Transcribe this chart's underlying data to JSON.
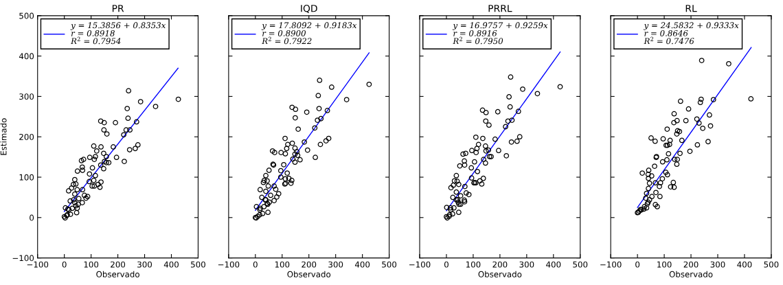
{
  "chart_data": [
    {
      "type": "scatter",
      "title": "PR",
      "xlabel": "Observado",
      "ylabel": "Estimado",
      "xlim": [
        -100,
        500
      ],
      "ylim": [
        -100,
        500
      ],
      "xticks": [
        -100,
        0,
        100,
        200,
        300,
        400,
        500
      ],
      "yticks": [
        -100,
        0,
        100,
        200,
        300,
        400,
        500
      ],
      "grid": false,
      "legend": "top left",
      "series": [
        {
          "color": "#000000",
          "marker": "circle",
          "x": [
            426,
            240,
            285,
            341,
            235,
            238,
            270,
            231,
            245,
            222,
            275,
            265,
            244,
            224,
            183,
            195,
            191,
            136,
            149,
            148,
            159,
            110,
            137,
            121,
            116,
            112,
            95,
            105,
            147,
            157,
            150,
            157,
            166,
            147,
            136,
            64,
            72,
            67,
            68,
            49,
            94,
            116,
            110,
            93,
            137,
            126,
            133,
            104,
            112,
            39,
            43,
            34,
            48,
            16,
            27,
            68,
            75,
            87,
            81,
            54,
            67,
            39,
            22,
            39,
            43,
            30,
            46,
            23,
            11,
            4,
            17,
            0,
            3,
            9,
            13,
            35,
            52,
            48
          ],
          "values": [
            293,
            314,
            287,
            275,
            270,
            246,
            237,
            217,
            217,
            205,
            180,
            171,
            168,
            139,
            175,
            149,
            235,
            239,
            235,
            217,
            207,
            177,
            175,
            165,
            151,
            144,
            149,
            123,
            159,
            151,
            139,
            136,
            136,
            121,
            130,
            141,
            144,
            125,
            117,
            115,
            108,
            104,
            92,
            89,
            88,
            82,
            75,
            78,
            78,
            94,
            83,
            82,
            69,
            66,
            73,
            69,
            55,
            52,
            48,
            47,
            37,
            58,
            41,
            37,
            29,
            23,
            12,
            8,
            7,
            24,
            19,
            2,
            -1,
            5,
            21,
            44,
            33,
            23
          ]
        },
        {
          "type": "line",
          "name": "y = 15.3856 + 0.8353x\nr = 0.8918\nR$^{2}$ = 0.7954",
          "color": "#0000ff",
          "line_style": "solid",
          "marker": "none",
          "x": [
            0,
            425
          ],
          "values": [
            15,
            370
          ]
        }
      ]
    },
    {
      "type": "scatter",
      "title": "IQD",
      "xlabel": "Observado",
      "xlim": [
        -100,
        500
      ],
      "ylim": [
        -100,
        500
      ],
      "xticks": [
        -100,
        0,
        100,
        200,
        300,
        400,
        500
      ],
      "yticks": [
        -100,
        0,
        100,
        200,
        300,
        400,
        500
      ],
      "tick_labels": "x",
      "grid": false,
      "legend": "top left",
      "series": [
        {
          "color": "#000000",
          "marker": "circle",
          "x": [
            425,
            240,
            285,
            341,
            235,
            238,
            269,
            232,
            245,
            222,
            274,
            264,
            243,
            224,
            183,
            195,
            192,
            137,
            150,
            149,
            160,
            111,
            138,
            121,
            117,
            112,
            96,
            106,
            148,
            155,
            148,
            158,
            167,
            148,
            140,
            64,
            72,
            66,
            68,
            51,
            95,
            119,
            112,
            95,
            136,
            125,
            133,
            110,
            113,
            39,
            44,
            33,
            48,
            18,
            30,
            70,
            76,
            87,
            80,
            57,
            70,
            39,
            24,
            39,
            44,
            32,
            47,
            27,
            16,
            4,
            18,
            0,
            3,
            9,
            17,
            37,
            52,
            46
          ],
          "values": [
            330,
            340,
            323,
            292,
            302,
            270,
            265,
            241,
            245,
            222,
            196,
            190,
            181,
            149,
            187,
            167,
            261,
            273,
            268,
            247,
            219,
            196,
            184,
            181,
            171,
            158,
            161,
            131,
            172,
            163,
            157,
            154,
            143,
            137,
            145,
            165,
            161,
            132,
            130,
            117,
            116,
            110,
            96,
            100,
            92,
            97,
            85,
            83,
            85,
            104,
            91,
            92,
            78,
            69,
            87,
            78,
            70,
            59,
            51,
            55,
            42,
            65,
            50,
            44,
            35,
            27,
            13,
            10,
            7,
            27,
            23,
            0,
            -1,
            3,
            19,
            44,
            38,
            33
          ]
        },
        {
          "type": "line",
          "name": "y = 17.8092 + 0.9183x\nr = 0.8900\nR$^{2}$ = 0.7922",
          "color": "#0000ff",
          "line_style": "solid",
          "marker": "none",
          "x": [
            0,
            425
          ],
          "values": [
            18,
            408
          ]
        }
      ]
    },
    {
      "type": "scatter",
      "title": "PRRL",
      "xlabel": "Observado",
      "xlim": [
        -100,
        500
      ],
      "ylim": [
        -100,
        500
      ],
      "xticks": [
        -100,
        0,
        100,
        200,
        300,
        400,
        500
      ],
      "yticks": [
        -100,
        0,
        100,
        200,
        300,
        400,
        500
      ],
      "tick_labels": "x",
      "grid": false,
      "legend": "top left",
      "series": [
        {
          "color": "#000000",
          "marker": "circle",
          "x": [
            425,
            240,
            285,
            340,
            234,
            238,
            269,
            230,
            245,
            221,
            274,
            264,
            243,
            224,
            182,
            195,
            192,
            135,
            148,
            147,
            159,
            110,
            136,
            120,
            114,
            111,
            95,
            105,
            146,
            157,
            148,
            161,
            167,
            146,
            139,
            62,
            72,
            67,
            68,
            50,
            93,
            116,
            105,
            94,
            138,
            125,
            132,
            110,
            103,
            37,
            40,
            30,
            46,
            17,
            26,
            69,
            74,
            84,
            67,
            53,
            68,
            37,
            24,
            42,
            47,
            28,
            46,
            23,
            12,
            1,
            15,
            0,
            3,
            10,
            16,
            37,
            53,
            44
          ],
          "values": [
            324,
            348,
            318,
            307,
            299,
            274,
            263,
            239,
            241,
            225,
            200,
            189,
            187,
            153,
            194,
            166,
            262,
            266,
            260,
            239,
            229,
            199,
            196,
            181,
            171,
            161,
            166,
            138,
            177,
            167,
            165,
            151,
            151,
            135,
            144,
            157,
            159,
            140,
            130,
            128,
            123,
            114,
            86,
            98,
            97,
            91,
            83,
            86,
            86,
            104,
            90,
            91,
            82,
            74,
            80,
            77,
            61,
            57,
            43,
            54,
            39,
            63,
            50,
            44,
            33,
            24,
            13,
            9,
            7,
            25,
            24,
            2,
            -1,
            3,
            19,
            44,
            33,
            38
          ]
        },
        {
          "type": "line",
          "name": "y = 16.9757 + 0.9259x\nr = 0.8916\nR$^{2}$ = 0.7950",
          "color": "#0000ff",
          "line_style": "solid",
          "marker": "none",
          "x": [
            0,
            425
          ],
          "values": [
            17,
            410
          ]
        }
      ]
    },
    {
      "type": "scatter",
      "title": "RL",
      "xlabel": "Observado",
      "xlim": [
        -100,
        500
      ],
      "ylim": [
        -100,
        500
      ],
      "xticks": [
        -100,
        0,
        100,
        200,
        300,
        400,
        500
      ],
      "yticks": [
        -100,
        0,
        100,
        200,
        300,
        400,
        500
      ],
      "tick_labels": "x",
      "grid": false,
      "legend": "top left",
      "series": [
        {
          "color": "#000000",
          "marker": "circle",
          "x": [
            424,
            240,
            341,
            284,
            238,
            235,
            269,
            230,
            244,
            222,
            273,
            264,
            224,
            196,
            181,
            191,
            161,
            137,
            148,
            136,
            150,
            157,
            147,
            111,
            122,
            166,
            96,
            107,
            112,
            120,
            66,
            51,
            71,
            70,
            116,
            110,
            94,
            139,
            149,
            147,
            159,
            64,
            106,
            112,
            93,
            134,
            124,
            137,
            86,
            82,
            18,
            42,
            40,
            41,
            53,
            45,
            67,
            41,
            34,
            69,
            84,
            67,
            74,
            54,
            31,
            45,
            37,
            26,
            15,
            7,
            3,
            0,
            11,
            24,
            40,
            34
          ],
          "values": [
            294,
            389,
            381,
            292,
            293,
            285,
            254,
            234,
            221,
            244,
            227,
            188,
            180,
            164,
            240,
            269,
            288,
            257,
            240,
            235,
            215,
            213,
            207,
            219,
            191,
            191,
            195,
            179,
            179,
            181,
            189,
            197,
            151,
            149,
            158,
            143,
            138,
            144,
            144,
            132,
            159,
            127,
            112,
            106,
            96,
            87,
            76,
            75,
            86,
            77,
            110,
            117,
            107,
            97,
            103,
            85,
            86,
            72,
            60,
            62,
            52,
            32,
            27,
            52,
            48,
            44,
            34,
            27,
            19,
            16,
            13,
            12,
            20,
            21,
            38,
            24
          ]
        },
        {
          "type": "line",
          "name": "y = 24.5832 + 0.9333x\nr = 0.8646\nR$^{2}$ = 0.7476",
          "color": "#0000ff",
          "line_style": "solid",
          "marker": "none",
          "x": [
            0,
            425
          ],
          "values": [
            25,
            421
          ]
        }
      ]
    }
  ]
}
